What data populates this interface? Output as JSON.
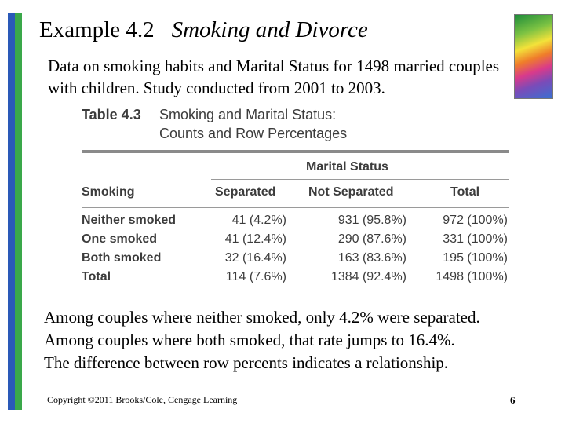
{
  "slide": {
    "title": "Example 4.2",
    "subtitle": "Smoking and Divorce",
    "intro": "Data on smoking habits and Marital Status for 1498 married couples with children. Study conducted from 2001 to 2003.",
    "table": {
      "number": "Table 4.3",
      "caption_line1": "Smoking and Marital Status:",
      "caption_line2": "Counts and Row Percentages",
      "group_header": "Marital Status",
      "columns": [
        "Smoking",
        "Separated",
        "Not Separated",
        "Total"
      ],
      "rows": [
        {
          "label": "Neither smoked",
          "separated": "41 (4.2%)",
          "not_separated": "931 (95.8%)",
          "total": "972 (100%)"
        },
        {
          "label": "One smoked",
          "separated": "41 (12.4%)",
          "not_separated": "290 (87.6%)",
          "total": "331 (100%)"
        },
        {
          "label": "Both smoked",
          "separated": "32 (16.4%)",
          "not_separated": "163 (83.6%)",
          "total": "195 (100%)"
        },
        {
          "label": "Total",
          "separated": "114 (7.6%)",
          "not_separated": "1384 (92.4%)",
          "total": "1498 (100%)"
        }
      ]
    },
    "body_lines": [
      "Among couples where neither smoked, only 4.2% were separated.",
      "Among couples where both smoked, that rate jumps to 16.4%.",
      "The difference between row percents indicates a relationship."
    ],
    "footer": "Copyright ©2011 Brooks/Cole, Cengage Learning",
    "page_number": "6"
  }
}
